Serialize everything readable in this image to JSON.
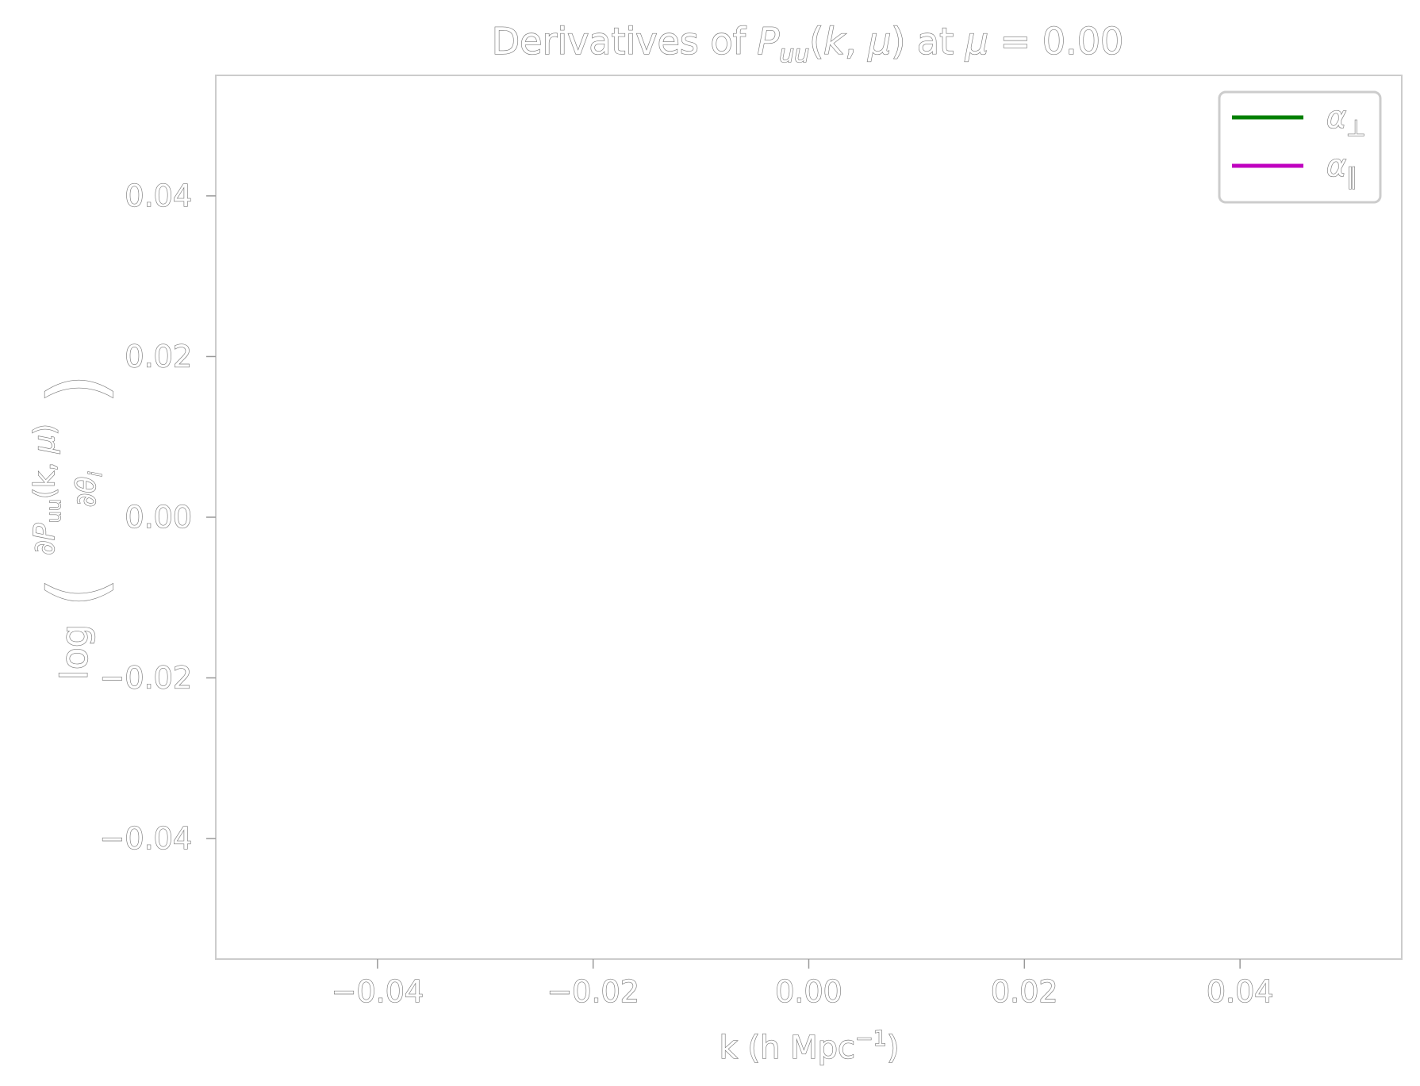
{
  "chart_data": {
    "type": "line",
    "title": "Derivatives of P_uu(k, μ) at μ = 0.00",
    "xlabel": "k (h Mpc⁻¹)",
    "ylabel": "log( ∂P_uu(k, μ) / ∂θ_i )",
    "xlim": [
      -0.055,
      0.055
    ],
    "ylim": [
      -0.055,
      0.055
    ],
    "x_ticks": [
      -0.04,
      -0.02,
      0.0,
      0.02,
      0.04
    ],
    "x_tick_labels": [
      "−0.04",
      "−0.02",
      "0.00",
      "0.02",
      "0.04"
    ],
    "y_ticks": [
      0.04,
      0.02,
      0.0,
      -0.02,
      -0.04
    ],
    "y_tick_labels": [
      "0.04",
      "0.02",
      "0.00",
      "−0.02",
      "−0.04"
    ],
    "grid": false,
    "legend_position": "top-right",
    "series": [
      {
        "name": "α⊥",
        "color": "#008000",
        "x": [],
        "y": []
      },
      {
        "name": "α∥",
        "color": "#bf00bf",
        "x": [],
        "y": []
      }
    ]
  }
}
